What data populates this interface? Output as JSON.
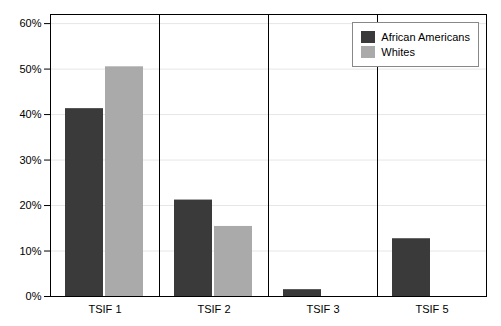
{
  "chart_data": {
    "type": "bar",
    "categories": [
      "TSIF 1",
      "TSIF 2",
      "TSIF 3",
      "TSIF 5"
    ],
    "series": [
      {
        "name": "African Americans",
        "color": "#3a3a3a",
        "values": [
          0.413,
          0.212,
          0.015,
          0.127
        ]
      },
      {
        "name": "Whites",
        "color": "#aaaaaa",
        "values": [
          0.505,
          0.154,
          0,
          0
        ]
      }
    ],
    "ylim": [
      0,
      0.62
    ],
    "yticks": [
      {
        "value": 0,
        "label": "0%"
      },
      {
        "value": 0.1,
        "label": "10%"
      },
      {
        "value": 0.2,
        "label": "20%"
      },
      {
        "value": 0.3,
        "label": "30%"
      },
      {
        "value": 0.4,
        "label": "40%"
      },
      {
        "value": 0.5,
        "label": "50%"
      },
      {
        "value": 0.6,
        "label": "60%"
      }
    ],
    "grid": true,
    "legend": "upper right"
  }
}
